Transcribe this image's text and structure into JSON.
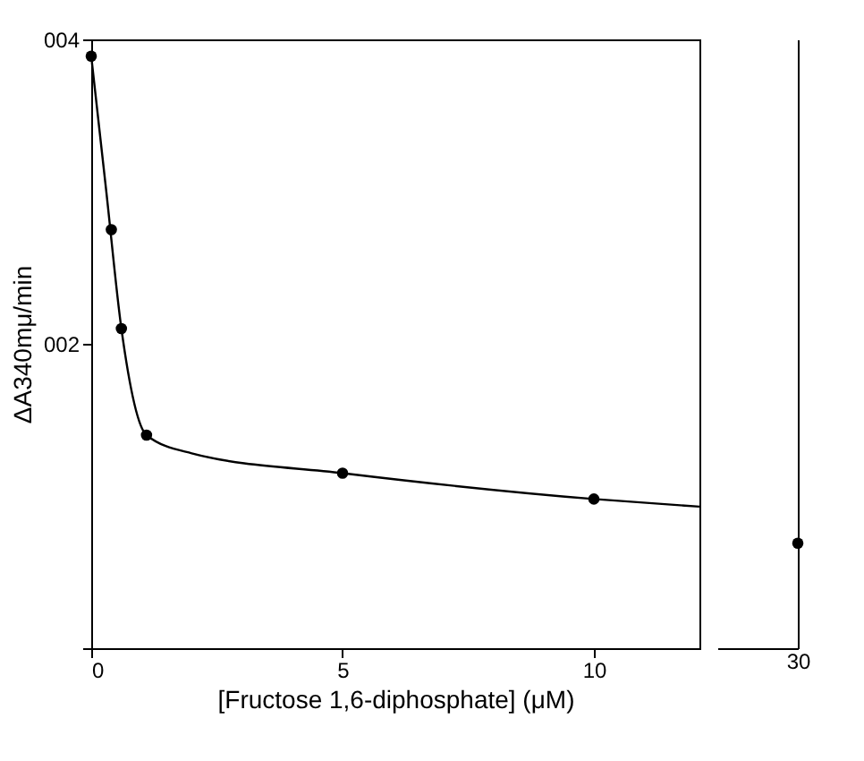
{
  "chart_data": [
    {
      "type": "scatter",
      "xlabel": "[Fructose 1,6-diphosphate]  (μM)",
      "ylabel": "ΔA340mμ/min",
      "xlim": [
        0,
        12.1
      ],
      "xticks": [
        0,
        5,
        10
      ],
      "ylim": [
        0,
        4
      ],
      "yticks": [
        {
          "value": 0,
          "label": null
        },
        {
          "value": 2,
          "label": "002"
        },
        {
          "value": 4,
          "label": "004"
        }
      ],
      "grid": false,
      "marker": "circle",
      "series": [
        {
          "color": "#000000",
          "x": [
            0,
            0.4,
            0.6,
            1.1,
            5,
            10
          ],
          "values": [
            3.89,
            2.75,
            2.1,
            1.4,
            1.15,
            0.98
          ]
        },
        {
          "type": "line",
          "marker": "none",
          "color": "#000000",
          "x": [
            0,
            0.3,
            0.6,
            1.1,
            2,
            5,
            10,
            12.1
          ],
          "values": [
            3.89,
            3.0,
            2.1,
            1.4,
            1.28,
            1.15,
            0.98,
            0.93
          ]
        }
      ]
    },
    {
      "type": "scatter",
      "categories": [
        "30"
      ],
      "ylim": [
        0,
        4
      ],
      "tick_labels": "x",
      "grid": false,
      "marker": "circle",
      "series": [
        {
          "color": "#000000",
          "values": [
            0.69
          ]
        }
      ]
    }
  ]
}
